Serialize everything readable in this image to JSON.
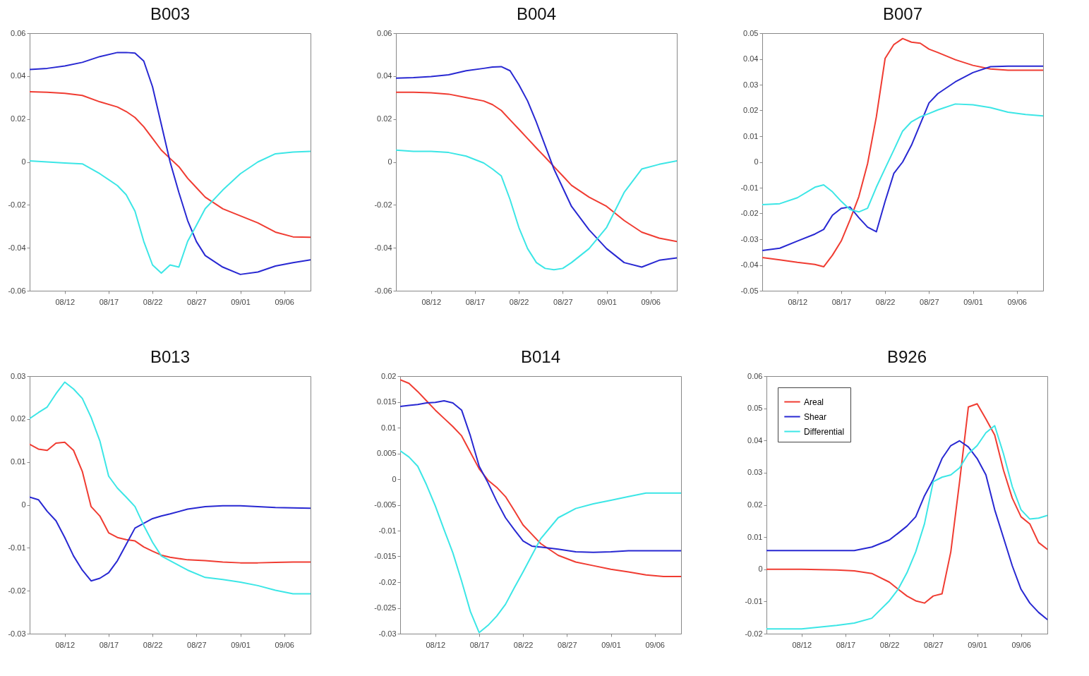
{
  "chart_data": [
    {
      "type": "line",
      "title": "B003",
      "xlim": [
        "--08-08",
        "--09-09"
      ],
      "xticks": [
        {
          "value": "--08-12",
          "label": "08/12"
        },
        {
          "value": "--08-17",
          "label": "08/17"
        },
        {
          "value": "--08-22",
          "label": "08/22"
        },
        {
          "value": "--08-27",
          "label": "08/27"
        },
        {
          "value": "--09-01",
          "label": "09/01"
        },
        {
          "value": "--09-06",
          "label": "09/06"
        }
      ],
      "ylim": [
        -0.06,
        0.06
      ],
      "yticks": [
        -0.06,
        -0.04,
        -0.02,
        0,
        0.02,
        0.04,
        0.06
      ],
      "x": [
        "--08-08",
        "--08-10",
        "--08-12",
        "--08-14",
        "--08-16",
        "--08-18",
        "--08-19",
        "--08-20",
        "--08-21",
        "--08-22",
        "--08-23",
        "--08-24",
        "--08-25",
        "--08-26",
        "--08-27",
        "--08-28",
        "--08-30",
        "--09-01",
        "--09-03",
        "--09-05",
        "--09-07",
        "--09-09"
      ],
      "series": [
        {
          "color": "#f03c32",
          "values": [
            0.0327,
            0.0325,
            0.032,
            0.031,
            0.028,
            0.0256,
            0.0235,
            0.0207,
            0.0164,
            0.011,
            0.0055,
            0.0016,
            -0.0022,
            -0.0076,
            -0.012,
            -0.0164,
            -0.0218,
            -0.0251,
            -0.0284,
            -0.0327,
            -0.0349,
            -0.0351
          ]
        },
        {
          "color": "#2828d2",
          "values": [
            0.0431,
            0.0436,
            0.0447,
            0.0464,
            0.0491,
            0.051,
            0.051,
            0.0507,
            0.047,
            0.035,
            0.0175,
            0,
            -0.0142,
            -0.0273,
            -0.0371,
            -0.0436,
            -0.049,
            -0.0524,
            -0.0513,
            -0.0485,
            -0.0469,
            -0.0456
          ]
        },
        {
          "color": "#3ce6e6",
          "values": [
            0.0005,
            0,
            -0.0005,
            -0.0009,
            -0.0055,
            -0.011,
            -0.0153,
            -0.0229,
            -0.037,
            -0.048,
            -0.0518,
            -0.048,
            -0.049,
            -0.037,
            -0.0295,
            -0.0218,
            -0.0131,
            -0.0055,
            0,
            0.0038,
            0.0046,
            0.0049
          ]
        }
      ]
    },
    {
      "type": "line",
      "title": "B004",
      "xlim": [
        "--08-08",
        "--09-09"
      ],
      "xticks": [
        {
          "value": "--08-12",
          "label": "08/12"
        },
        {
          "value": "--08-17",
          "label": "08/17"
        },
        {
          "value": "--08-22",
          "label": "08/22"
        },
        {
          "value": "--08-27",
          "label": "08/27"
        },
        {
          "value": "--09-01",
          "label": "09/01"
        },
        {
          "value": "--09-06",
          "label": "09/06"
        }
      ],
      "ylim": [
        -0.06,
        0.06
      ],
      "yticks": [
        -0.06,
        -0.04,
        -0.02,
        0,
        0.02,
        0.04,
        0.06
      ],
      "x": [
        "--08-08",
        "--08-10",
        "--08-12",
        "--08-14",
        "--08-16",
        "--08-18",
        "--08-19",
        "--08-20",
        "--08-21",
        "--08-22",
        "--08-23",
        "--08-24",
        "--08-25",
        "--08-26",
        "--08-27",
        "--08-28",
        "--08-30",
        "--09-01",
        "--09-03",
        "--09-05",
        "--09-07",
        "--09-09"
      ],
      "series": [
        {
          "color": "#f03c32",
          "values": [
            0.0325,
            0.0325,
            0.0322,
            0.0316,
            0.03,
            0.0284,
            0.0267,
            0.024,
            0.0196,
            0.0153,
            0.0109,
            0.0065,
            0.0022,
            -0.0022,
            -0.0065,
            -0.0109,
            -0.0164,
            -0.0207,
            -0.0273,
            -0.0327,
            -0.0355,
            -0.0371
          ]
        },
        {
          "color": "#2828d2",
          "values": [
            0.039,
            0.0393,
            0.0398,
            0.0406,
            0.0425,
            0.0436,
            0.0442,
            0.0444,
            0.0425,
            0.036,
            0.0284,
            0.0185,
            0.0076,
            -0.0033,
            -0.012,
            -0.0207,
            -0.0316,
            -0.0404,
            -0.0469,
            -0.049,
            -0.0458,
            -0.0447
          ]
        },
        {
          "color": "#3ce6e6",
          "values": [
            0.0055,
            0.0049,
            0.0049,
            0.0044,
            0.0027,
            -0.0005,
            -0.0033,
            -0.0065,
            -0.0175,
            -0.0305,
            -0.0404,
            -0.0469,
            -0.0496,
            -0.0502,
            -0.0496,
            -0.0469,
            -0.0404,
            -0.0305,
            -0.0142,
            -0.0033,
            -0.0011,
            0.0005
          ]
        }
      ]
    },
    {
      "type": "line",
      "title": "B007",
      "xlim": [
        "--08-08",
        "--09-09"
      ],
      "xticks": [
        {
          "value": "--08-12",
          "label": "08/12"
        },
        {
          "value": "--08-17",
          "label": "08/17"
        },
        {
          "value": "--08-22",
          "label": "08/22"
        },
        {
          "value": "--08-27",
          "label": "08/27"
        },
        {
          "value": "--09-01",
          "label": "09/01"
        },
        {
          "value": "--09-06",
          "label": "09/06"
        }
      ],
      "ylim": [
        -0.05,
        0.05
      ],
      "yticks": [
        -0.05,
        -0.04,
        -0.03,
        -0.02,
        -0.01,
        0,
        0.01,
        0.02,
        0.03,
        0.04,
        0.05
      ],
      "x": [
        "--08-08",
        "--08-10",
        "--08-12",
        "--08-14",
        "--08-15",
        "--08-16",
        "--08-17",
        "--08-18",
        "--08-19",
        "--08-20",
        "--08-21",
        "--08-22",
        "--08-23",
        "--08-24",
        "--08-25",
        "--08-26",
        "--08-27",
        "--08-28",
        "--08-30",
        "--09-01",
        "--09-03",
        "--09-05",
        "--09-07",
        "--09-09"
      ],
      "series": [
        {
          "color": "#f03c32",
          "values": [
            -0.0371,
            -0.038,
            -0.039,
            -0.0398,
            -0.0407,
            -0.0362,
            -0.0307,
            -0.0225,
            -0.0135,
            -0.0007,
            0.0175,
            0.0402,
            0.0456,
            0.0479,
            0.0465,
            0.0461,
            0.0438,
            0.0425,
            0.0397,
            0.0375,
            0.0361,
            0.0356,
            0.0356,
            0.0356
          ]
        },
        {
          "color": "#2828d2",
          "values": [
            -0.0344,
            -0.0335,
            -0.0307,
            -0.028,
            -0.0262,
            -0.0207,
            -0.018,
            -0.0175,
            -0.0216,
            -0.0253,
            -0.0271,
            -0.0153,
            -0.0044,
            0,
            0.0065,
            0.0147,
            0.0229,
            0.0265,
            0.0311,
            0.0347,
            0.037,
            0.0372,
            0.0372,
            0.0372
          ]
        },
        {
          "color": "#3ce6e6",
          "values": [
            -0.0166,
            -0.0162,
            -0.0139,
            -0.0098,
            -0.0089,
            -0.0116,
            -0.0153,
            -0.0185,
            -0.0194,
            -0.018,
            -0.0098,
            -0.0025,
            0.0047,
            0.012,
            0.0156,
            0.0175,
            0.0188,
            0.0202,
            0.0225,
            0.0222,
            0.0211,
            0.0193,
            0.0184,
            0.0179
          ]
        }
      ]
    },
    {
      "type": "line",
      "title": "B013",
      "xlim": [
        "--08-08",
        "--09-09"
      ],
      "xticks": [
        {
          "value": "--08-12",
          "label": "08/12"
        },
        {
          "value": "--08-17",
          "label": "08/17"
        },
        {
          "value": "--08-22",
          "label": "08/22"
        },
        {
          "value": "--08-27",
          "label": "08/27"
        },
        {
          "value": "--09-01",
          "label": "09/01"
        },
        {
          "value": "--09-06",
          "label": "09/06"
        }
      ],
      "ylim": [
        -0.03,
        0.03
      ],
      "yticks": [
        -0.03,
        -0.02,
        -0.01,
        0,
        0.01,
        0.02,
        0.03
      ],
      "x": [
        "--08-08",
        "--08-09",
        "--08-10",
        "--08-11",
        "--08-12",
        "--08-13",
        "--08-14",
        "--08-15",
        "--08-16",
        "--08-17",
        "--08-18",
        "--08-19",
        "--08-20",
        "--08-21",
        "--08-22",
        "--08-23",
        "--08-24",
        "--08-26",
        "--08-28",
        "--08-30",
        "--09-01",
        "--09-03",
        "--09-05",
        "--09-07",
        "--09-09"
      ],
      "series": [
        {
          "color": "#f03c32",
          "values": [
            0.0141,
            0.013,
            0.0127,
            0.0144,
            0.0146,
            0.0127,
            0.0078,
            -0.0004,
            -0.0026,
            -0.0065,
            -0.0076,
            -0.0081,
            -0.0084,
            -0.0098,
            -0.0108,
            -0.0117,
            -0.0122,
            -0.0128,
            -0.013,
            -0.0133,
            -0.0135,
            -0.0135,
            -0.0134,
            -0.0133,
            -0.0133
          ]
        },
        {
          "color": "#2828d2",
          "values": [
            0.0018,
            0.0012,
            -0.0015,
            -0.0037,
            -0.0076,
            -0.0119,
            -0.0152,
            -0.0177,
            -0.0171,
            -0.0158,
            -0.013,
            -0.0092,
            -0.0054,
            -0.0043,
            -0.0032,
            -0.0026,
            -0.0021,
            -0.001,
            -0.0004,
            -0.0002,
            -0.0002,
            -0.0004,
            -0.0006,
            -0.0007,
            -0.0008
          ]
        },
        {
          "color": "#3ce6e6",
          "values": [
            0.0201,
            0.0215,
            0.0228,
            0.0259,
            0.0286,
            0.027,
            0.0248,
            0.0204,
            0.0149,
            0.0067,
            0.0039,
            0.0018,
            -0.0004,
            -0.0048,
            -0.0087,
            -0.0119,
            -0.013,
            -0.0152,
            -0.0169,
            -0.0174,
            -0.018,
            -0.0188,
            -0.0199,
            -0.0207,
            -0.0207
          ]
        }
      ]
    },
    {
      "type": "line",
      "title": "B014",
      "xlim": [
        "--08-08",
        "--09-09"
      ],
      "xticks": [
        {
          "value": "--08-12",
          "label": "08/12"
        },
        {
          "value": "--08-17",
          "label": "08/17"
        },
        {
          "value": "--08-22",
          "label": "08/22"
        },
        {
          "value": "--08-27",
          "label": "08/27"
        },
        {
          "value": "--09-01",
          "label": "09/01"
        },
        {
          "value": "--09-06",
          "label": "09/06"
        }
      ],
      "ylim": [
        -0.03,
        0.02
      ],
      "yticks": [
        -0.03,
        -0.025,
        -0.02,
        -0.015,
        -0.01,
        -0.005,
        0,
        0.005,
        0.01,
        0.015,
        0.02
      ],
      "x": [
        "--08-08",
        "--08-09",
        "--08-10",
        "--08-11",
        "--08-12",
        "--08-13",
        "--08-14",
        "--08-15",
        "--08-16",
        "--08-17",
        "--08-18",
        "--08-19",
        "--08-20",
        "--08-21",
        "--08-22",
        "--08-23",
        "--08-24",
        "--08-26",
        "--08-28",
        "--08-30",
        "--09-01",
        "--09-03",
        "--09-05",
        "--09-07",
        "--09-09"
      ],
      "series": [
        {
          "color": "#f03c32",
          "values": [
            0.0193,
            0.0186,
            0.017,
            0.0152,
            0.0134,
            0.0118,
            0.0102,
            0.0084,
            0.0052,
            0.002,
            -0.0002,
            -0.0016,
            -0.0034,
            -0.0061,
            -0.0089,
            -0.0107,
            -0.0125,
            -0.0148,
            -0.0161,
            -0.0168,
            -0.0175,
            -0.018,
            -0.0186,
            -0.0189,
            -0.0189
          ]
        },
        {
          "color": "#2828d2",
          "values": [
            0.0141,
            0.0143,
            0.0145,
            0.0148,
            0.0149,
            0.0152,
            0.0148,
            0.0134,
            0.0084,
            0.0025,
            -0.0007,
            -0.0043,
            -0.0075,
            -0.0098,
            -0.012,
            -0.013,
            -0.0132,
            -0.0136,
            -0.0141,
            -0.0142,
            -0.0141,
            -0.0139,
            -0.0139,
            -0.0139,
            -0.0139
          ]
        },
        {
          "color": "#3ce6e6",
          "values": [
            0.0055,
            0.0043,
            0.0025,
            -0.0011,
            -0.0052,
            -0.0098,
            -0.0143,
            -0.0198,
            -0.0257,
            -0.0298,
            -0.0284,
            -0.0266,
            -0.0243,
            -0.0211,
            -0.018,
            -0.0148,
            -0.0116,
            -0.0075,
            -0.0057,
            -0.0048,
            -0.0041,
            -0.0034,
            -0.0027,
            -0.0027,
            -0.0027
          ]
        }
      ]
    },
    {
      "type": "line",
      "title": "B926",
      "xlim": [
        "--08-08",
        "--09-09"
      ],
      "xticks": [
        {
          "value": "--08-12",
          "label": "08/12"
        },
        {
          "value": "--08-17",
          "label": "08/17"
        },
        {
          "value": "--08-22",
          "label": "08/22"
        },
        {
          "value": "--08-27",
          "label": "08/27"
        },
        {
          "value": "--09-01",
          "label": "09/01"
        },
        {
          "value": "--09-06",
          "label": "09/06"
        }
      ],
      "ylim": [
        -0.02,
        0.06
      ],
      "yticks": [
        -0.02,
        -0.01,
        0,
        0.01,
        0.02,
        0.03,
        0.04,
        0.05,
        0.06
      ],
      "legend": "top left",
      "x": [
        "--08-08",
        "--08-12",
        "--08-16",
        "--08-18",
        "--08-20",
        "--08-22",
        "--08-23",
        "--08-24",
        "--08-25",
        "--08-26",
        "--08-27",
        "--08-28",
        "--08-29",
        "--08-30",
        "--08-31",
        "--09-01",
        "--09-02",
        "--09-03",
        "--09-04",
        "--09-05",
        "--09-06",
        "--09-07",
        "--09-08",
        "--09-09"
      ],
      "series": [
        {
          "name": "Areal",
          "color": "#f03c32",
          "values": [
            0,
            0,
            -0.0002,
            -0.0005,
            -0.0013,
            -0.004,
            -0.0062,
            -0.0083,
            -0.0098,
            -0.0105,
            -0.0083,
            -0.0076,
            0.0054,
            0.0272,
            0.0504,
            0.0514,
            0.0467,
            0.0417,
            0.0308,
            0.0221,
            0.0163,
            0.0141,
            0.0083,
            0.0062
          ]
        },
        {
          "name": "Shear",
          "color": "#2828d2",
          "values": [
            0.0058,
            0.0058,
            0.0058,
            0.0058,
            0.0069,
            0.0091,
            0.0112,
            0.0134,
            0.0163,
            0.0228,
            0.0279,
            0.0344,
            0.0384,
            0.0399,
            0.038,
            0.0344,
            0.0293,
            0.0185,
            0.0098,
            0.0011,
            -0.0062,
            -0.0105,
            -0.0134,
            -0.0156
          ]
        },
        {
          "name": "Differential",
          "color": "#3ce6e6",
          "values": [
            -0.0185,
            -0.0185,
            -0.0174,
            -0.0167,
            -0.0152,
            -0.0098,
            -0.0062,
            -0.0011,
            0.0054,
            0.0141,
            0.0272,
            0.0286,
            0.0293,
            0.0315,
            0.0359,
            0.0384,
            0.0424,
            0.0446,
            0.0359,
            0.0257,
            0.0185,
            0.0156,
            0.0159,
            0.0167
          ]
        }
      ]
    }
  ]
}
